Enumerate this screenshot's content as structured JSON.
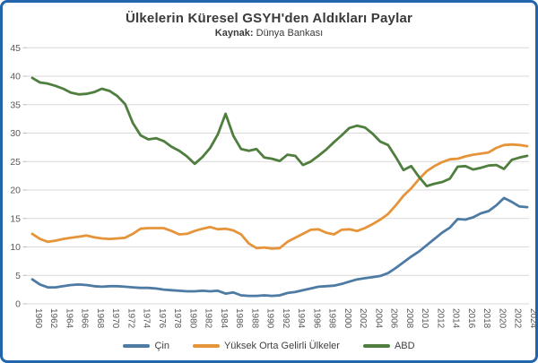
{
  "frame": {
    "border_color": "#2165ac"
  },
  "chart_data": {
    "type": "line",
    "title": "Ülkelerin Küresel GSYH'den Aldıkları Paylar",
    "source_label": "Kaynak:",
    "source_text": "Dünya Bankası",
    "ylabel": "",
    "xlabel": "",
    "ylim": [
      0,
      45
    ],
    "y_ticks": [
      0,
      5,
      10,
      15,
      20,
      25,
      30,
      35,
      40,
      45
    ],
    "y_tick_labels": [
      "0",
      "5",
      "10",
      "15",
      "20",
      "25",
      "30",
      "35",
      "40",
      "45"
    ],
    "grid": "horizontal-only",
    "legend_position": "bottom",
    "gridline_color": "#d9d9d9",
    "axis_label_color": "#595959",
    "x": [
      1960,
      1961,
      1962,
      1963,
      1964,
      1965,
      1966,
      1967,
      1968,
      1969,
      1970,
      1971,
      1972,
      1973,
      1974,
      1975,
      1976,
      1977,
      1978,
      1979,
      1980,
      1981,
      1982,
      1983,
      1984,
      1985,
      1986,
      1987,
      1988,
      1989,
      1990,
      1991,
      1992,
      1993,
      1994,
      1995,
      1996,
      1997,
      1998,
      1999,
      2000,
      2001,
      2002,
      2003,
      2004,
      2005,
      2006,
      2007,
      2008,
      2009,
      2010,
      2011,
      2012,
      2013,
      2014,
      2015,
      2016,
      2017,
      2018,
      2019,
      2020,
      2021,
      2022,
      2023,
      2024
    ],
    "x_tick_labels": [
      "1960",
      "1962",
      "1964",
      "1966",
      "1968",
      "1970",
      "1972",
      "1974",
      "1976",
      "1978",
      "1980",
      "1982",
      "1984",
      "1986",
      "1988",
      "1990",
      "1992",
      "1994",
      "1996",
      "1998",
      "2000",
      "2002",
      "2004",
      "2006",
      "2008",
      "2010",
      "2012",
      "2014",
      "2016",
      "2018",
      "2020",
      "2022",
      "2024"
    ],
    "series": [
      {
        "name": "Çin",
        "color": "#4e7ba3",
        "values": [
          4.3,
          3.4,
          2.9,
          2.9,
          3.1,
          3.3,
          3.4,
          3.3,
          3.1,
          3.0,
          3.1,
          3.1,
          3.0,
          2.9,
          2.8,
          2.8,
          2.7,
          2.5,
          2.4,
          2.3,
          2.2,
          2.2,
          2.3,
          2.2,
          2.3,
          1.8,
          2.0,
          1.5,
          1.4,
          1.4,
          1.5,
          1.4,
          1.5,
          1.9,
          2.1,
          2.4,
          2.7,
          3.0,
          3.1,
          3.2,
          3.5,
          3.9,
          4.3,
          4.5,
          4.7,
          4.9,
          5.4,
          6.3,
          7.3,
          8.3,
          9.2,
          10.3,
          11.4,
          12.5,
          13.4,
          14.9,
          14.8,
          15.2,
          15.9,
          16.3,
          17.3,
          18.6,
          17.9,
          17.1,
          17.0
        ]
      },
      {
        "name": "Yüksek Orta Gelirli Ülkeler",
        "color": "#e5943a",
        "values": [
          12.3,
          11.4,
          10.9,
          11.1,
          11.4,
          11.6,
          11.8,
          12.0,
          11.7,
          11.5,
          11.4,
          11.5,
          11.6,
          12.3,
          13.2,
          13.3,
          13.3,
          13.3,
          12.8,
          12.2,
          12.3,
          12.8,
          13.2,
          13.5,
          13.1,
          13.2,
          12.9,
          12.2,
          10.6,
          9.8,
          9.9,
          9.7,
          9.8,
          10.9,
          11.6,
          12.3,
          13.0,
          13.1,
          12.5,
          12.2,
          13.0,
          13.1,
          12.8,
          13.3,
          14.0,
          14.8,
          15.8,
          17.3,
          19.0,
          20.3,
          21.9,
          23.3,
          24.2,
          24.9,
          25.4,
          25.5,
          25.9,
          26.2,
          26.4,
          26.6,
          27.4,
          27.9,
          28.0,
          27.9,
          27.7
        ]
      },
      {
        "name": "ABD",
        "color": "#4f7e3f",
        "values": [
          39.7,
          38.9,
          38.7,
          38.3,
          37.8,
          37.1,
          36.8,
          36.9,
          37.2,
          37.8,
          37.4,
          36.5,
          35.1,
          31.8,
          29.6,
          28.9,
          29.1,
          28.6,
          27.6,
          26.9,
          25.9,
          24.6,
          25.8,
          27.4,
          29.8,
          33.4,
          29.5,
          27.2,
          26.9,
          27.2,
          25.7,
          25.5,
          25.1,
          26.2,
          26.0,
          24.4,
          25.0,
          26.0,
          27.1,
          28.4,
          29.6,
          30.9,
          31.3,
          31.0,
          29.9,
          28.5,
          27.9,
          25.8,
          23.5,
          24.2,
          22.3,
          20.7,
          21.1,
          21.4,
          22.0,
          24.1,
          24.2,
          23.6,
          23.9,
          24.3,
          24.4,
          23.7,
          25.3,
          25.7,
          26.0
        ]
      }
    ]
  }
}
